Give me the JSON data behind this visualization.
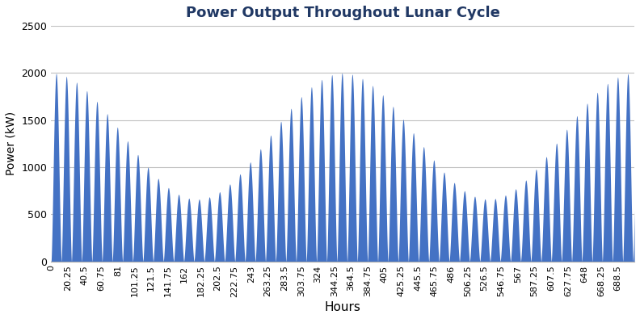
{
  "title": "Power Output Throughout Lunar Cycle",
  "xlabel": "Hours",
  "ylabel": "Power (kW)",
  "fill_color": "#4472C4",
  "line_color": "#4472C4",
  "background_color": "#ffffff",
  "grid_color": "#C0C0C0",
  "title_color": "#203864",
  "axis_label_color": "#000000",
  "ylim": [
    0,
    2500
  ],
  "yticks": [
    0,
    500,
    1000,
    1500,
    2000,
    2500
  ],
  "max_power": 2000,
  "tidal_period": 12.4,
  "total_hours": 708.5,
  "xtick_labels": [
    "0",
    "20.25",
    "40.5",
    "60.75",
    "81",
    "101.25",
    "121.5",
    "141.75",
    "162",
    "182.25",
    "202.5",
    "222.75",
    "243",
    "263.25",
    "283.5",
    "303.75",
    "324",
    "344.25",
    "364.5",
    "384.75",
    "405",
    "425.25",
    "445.5",
    "465.75",
    "486",
    "506.25",
    "526.5",
    "546.75",
    "567",
    "587.25",
    "607.5",
    "627.75",
    "648",
    "668.25",
    "688.5"
  ]
}
